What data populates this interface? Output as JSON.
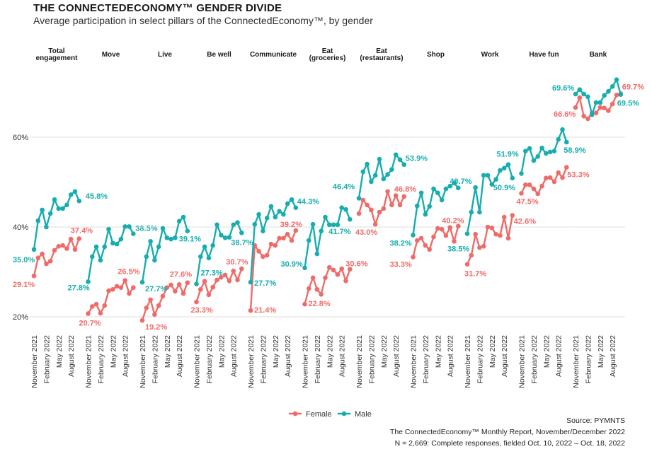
{
  "title": "THE CONNECTEDECONOMY™ GENDER DIVIDE",
  "subtitle": "Average participation in select pillars of the ConnectedEconomy™, by gender",
  "source": {
    "line1": "Source: PYMNTS",
    "line2": "The ConnectedEconomy™ Monthly Report, November/December 2022",
    "line3": "N = 2,669: Complete responses, fielded Oct. 10, 2022 – Oct. 18, 2022"
  },
  "colors": {
    "female": "#ef6b68",
    "male": "#17adae",
    "grid": "#dddddd"
  },
  "chart_data": {
    "type": "line",
    "x": [
      "November 2021",
      "December 2021",
      "January 2022",
      "February 2022",
      "March 2022",
      "April 2022",
      "May 2022",
      "June 2022",
      "July 2022",
      "August 2022",
      "September 2022",
      "October 2022"
    ],
    "x_ticks": [
      "November 2021",
      "February 2022",
      "May 2022",
      "August 2022"
    ],
    "y_ticks": [
      "20%",
      "40%",
      "60%"
    ],
    "y_tick_values": [
      20,
      40,
      60
    ],
    "ylim": [
      17,
      75
    ],
    "grid": true,
    "legend": {
      "position": "bottom",
      "entries": [
        "Female",
        "Male"
      ]
    },
    "series_names": [
      "Female",
      "Male"
    ],
    "panels": [
      {
        "title": [
          "Total",
          "engagement"
        ],
        "male": [
          35.0,
          41.4,
          43.8,
          40.0,
          43.0,
          46.1,
          44.1,
          44.1,
          44.9,
          47.2,
          47.9,
          45.8
        ],
        "female": [
          29.1,
          33.1,
          34.0,
          31.8,
          32.4,
          34.8,
          35.7,
          35.9,
          35.2,
          37.3,
          35.0,
          37.4
        ]
      },
      {
        "title": [
          "Move"
        ],
        "male": [
          27.8,
          33.4,
          35.6,
          32.6,
          35.6,
          39.5,
          36.4,
          36.2,
          37.3,
          40.1,
          40.1,
          38.5
        ],
        "female": [
          20.7,
          22.3,
          22.8,
          20.8,
          22.5,
          25.8,
          26.1,
          26.8,
          26.5,
          28.1,
          25.2,
          26.5
        ]
      },
      {
        "title": [
          "Live"
        ],
        "male": [
          27.7,
          33.4,
          36.8,
          32.6,
          35.6,
          39.7,
          37.6,
          37.3,
          37.6,
          41.3,
          42.2,
          39.1
        ],
        "female": [
          19.2,
          22.0,
          23.8,
          20.5,
          22.5,
          24.6,
          26.5,
          27.1,
          25.7,
          27.2,
          25.2,
          27.6
        ]
      },
      {
        "title": [
          "Be well"
        ],
        "male": [
          27.3,
          33.4,
          35.6,
          33.1,
          35.9,
          40.5,
          38.2,
          37.6,
          37.7,
          40.5,
          41.0,
          38.7
        ],
        "female": [
          23.3,
          26.1,
          27.9,
          24.9,
          26.6,
          28.2,
          28.8,
          29.3,
          28.0,
          30.2,
          28.2,
          30.7
        ]
      },
      {
        "title": [
          "Communicate"
        ],
        "male": [
          27.7,
          40.6,
          42.8,
          39.1,
          42.0,
          44.6,
          42.2,
          43.5,
          42.8,
          45.2,
          46.1,
          44.3
        ],
        "female": [
          21.4,
          35.9,
          34.6,
          33.4,
          33.7,
          36.2,
          35.9,
          37.5,
          37.5,
          38.4,
          37.0,
          39.2
        ]
      },
      {
        "title": [
          "Eat",
          "(groceries)"
        ],
        "male": [
          30.9,
          37.0,
          40.6,
          34.0,
          39.1,
          42.2,
          40.5,
          40.5,
          40.5,
          44.3,
          43.9,
          41.7
        ],
        "female": [
          22.8,
          26.3,
          28.7,
          26.1,
          25.0,
          28.7,
          31.0,
          30.4,
          29.4,
          30.7,
          28.0,
          30.6
        ]
      },
      {
        "title": [
          "Eat",
          "(restaurants)"
        ],
        "male": [
          46.4,
          52.3,
          54.0,
          50.1,
          51.5,
          55.1,
          50.7,
          51.7,
          52.8,
          56.1,
          55.0,
          53.9
        ],
        "female": [
          43.0,
          46.0,
          44.9,
          43.8,
          40.6,
          43.3,
          44.1,
          47.9,
          44.9,
          47.0,
          44.9,
          46.8
        ]
      },
      {
        "title": [
          "Shop"
        ],
        "male": [
          38.2,
          44.7,
          47.6,
          42.8,
          44.6,
          48.5,
          47.6,
          46.0,
          48.5,
          49.1,
          49.8,
          48.7
        ],
        "female": [
          33.3,
          37.0,
          37.5,
          35.9,
          35.0,
          37.8,
          39.7,
          39.5,
          38.1,
          39.9,
          36.8,
          40.2
        ]
      },
      {
        "title": [
          "Work"
        ],
        "male": [
          38.5,
          43.3,
          48.8,
          43.3,
          51.5,
          51.5,
          49.5,
          50.6,
          52.6,
          53.1,
          53.9,
          50.9
        ],
        "female": [
          31.7,
          33.7,
          38.4,
          35.4,
          35.7,
          40.0,
          39.8,
          38.4,
          38.1,
          42.2,
          37.5,
          42.6
        ]
      },
      {
        "title": [
          "Have fun"
        ],
        "male": [
          51.9,
          56.9,
          57.5,
          54.8,
          55.7,
          57.6,
          56.4,
          56.7,
          56.9,
          59.5,
          61.7,
          58.9
        ],
        "female": [
          47.5,
          49.4,
          49.4,
          48.5,
          47.4,
          49.1,
          50.9,
          51.0,
          50.1,
          52.1,
          51.0,
          53.3
        ]
      },
      {
        "title": [
          "Bank"
        ],
        "male": [
          69.6,
          70.6,
          69.6,
          69.0,
          65.0,
          67.7,
          67.7,
          69.3,
          70.2,
          71.3,
          72.8,
          69.5
        ],
        "female": [
          66.6,
          68.8,
          64.7,
          64.1,
          65.4,
          65.4,
          66.6,
          66.5,
          65.9,
          67.4,
          69.4,
          69.7
        ]
      }
    ]
  }
}
